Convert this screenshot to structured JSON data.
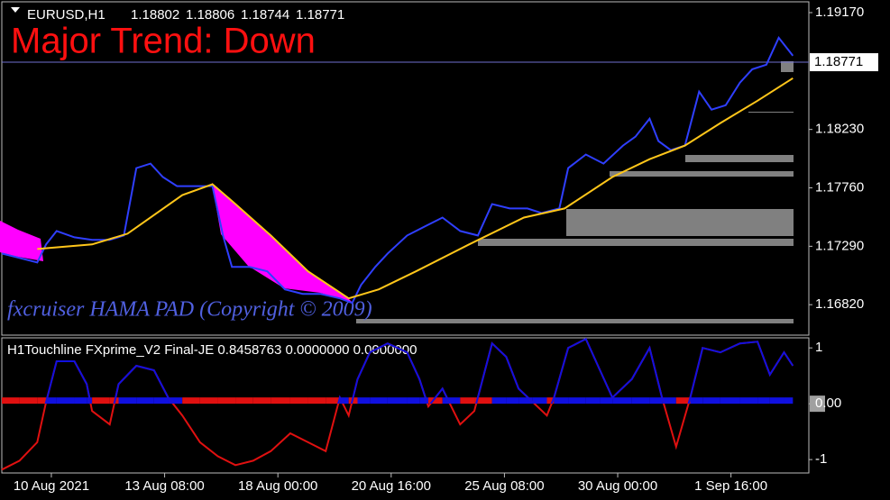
{
  "chart_data": [
    {
      "type": "line",
      "symbol": "EURUSD,H1",
      "ohlc": [
        1.18802,
        1.18806,
        1.18744,
        1.18771
      ],
      "annotation": "Major Trend: Down",
      "watermark": "fxcruiser HAMA PAD (Copyright © 2009)",
      "last_price": 1.18771,
      "x": [
        -28,
        -18,
        -8,
        -3,
        3,
        13,
        23,
        33,
        41,
        48,
        56,
        63,
        71,
        81,
        91,
        97,
        102,
        112,
        122,
        132,
        142,
        152,
        163,
        170,
        175,
        183,
        190,
        201,
        211,
        221,
        231,
        241,
        249,
        259,
        269,
        277,
        287,
        292,
        302,
        312,
        323,
        330,
        338,
        343,
        350,
        358,
        366,
        373,
        381,
        389,
        396,
        404,
        411,
        417,
        419
      ],
      "series": [
        {
          "color": "#2f3fff",
          "values": [
            1.17232,
            1.17196,
            1.1716,
            1.17305,
            1.17413,
            1.17362,
            1.17341,
            1.17341,
            1.17377,
            1.17919,
            1.17955,
            1.17847,
            1.17774,
            1.17774,
            1.17774,
            1.17377,
            1.17124,
            1.17124,
            1.17088,
            1.16943,
            1.16907,
            1.16907,
            1.16871,
            1.16834,
            1.16979,
            1.17124,
            1.17232,
            1.17377,
            1.17449,
            1.17521,
            1.17413,
            1.17377,
            1.1763,
            1.17594,
            1.17594,
            1.17557,
            1.17594,
            1.17919,
            1.18028,
            1.17955,
            1.181,
            1.18172,
            1.18317,
            1.18136,
            1.18064,
            1.181,
            1.18534,
            1.18389,
            1.18425,
            1.18606,
            1.18714,
            1.18751,
            1.18968,
            1.18859,
            1.18823
          ]
        },
        {
          "color": "#ffc61a",
          "x": [
            -8,
            23,
            43,
            74,
            91,
            104,
            124,
            145,
            168,
            185,
            206,
            236,
            267,
            290,
            317,
            338,
            358,
            378,
            399,
            419
          ],
          "values": [
            1.17268,
            1.17305,
            1.17391,
            1.17702,
            1.17789,
            1.1763,
            1.17377,
            1.17088,
            1.16871,
            1.16943,
            1.17088,
            1.17305,
            1.17521,
            1.17594,
            1.17847,
            1.17991,
            1.181,
            1.18281,
            1.18461,
            1.18642
          ]
        }
      ],
      "xlim": [
        -28,
        428
      ],
      "ylim": [
        1.19257,
        1.16575
      ],
      "yticks": [
        {
          "value": 1.1917,
          "label": "1.19170"
        },
        {
          "value": 1.1823,
          "label": "1.18230"
        },
        {
          "value": 1.1776,
          "label": "1.17760"
        },
        {
          "value": 1.1729,
          "label": "1.17290"
        },
        {
          "value": 1.1682,
          "label": "1.16820"
        }
      ]
    },
    {
      "type": "line",
      "title": "H1Touchline  FXprime_V2 Final-JE 0.8458763 0.0000000 0.0000000",
      "x": [
        -28,
        -18,
        -8,
        -3,
        3,
        13,
        20,
        23,
        33,
        38,
        48,
        58,
        66,
        74,
        84,
        94,
        104,
        114,
        124,
        135,
        145,
        155,
        163,
        168,
        173,
        180,
        190,
        201,
        208,
        213,
        221,
        231,
        239,
        249,
        257,
        264,
        272,
        280,
        284,
        292,
        302,
        310,
        317,
        328,
        338,
        345,
        353,
        361,
        368,
        378,
        389,
        399,
        406,
        414,
        419
      ],
      "series": [
        {
          "color": "#e01010",
          "positive_color": "#1010e0",
          "values": [
            -1.18,
            -1.02,
            -0.69,
            0.03,
            0.76,
            0.76,
            0.35,
            -0.13,
            -0.37,
            0.35,
            0.68,
            0.6,
            0.11,
            -0.21,
            -0.69,
            -0.94,
            -1.1,
            -1.02,
            -0.85,
            -0.53,
            -0.69,
            -0.85,
            0.11,
            -0.21,
            0.44,
            0.92,
            1.08,
            0.92,
            0.44,
            -0.05,
            0.27,
            -0.37,
            -0.13,
            1.08,
            0.84,
            0.27,
            0.03,
            -0.21,
            0.11,
            1.0,
            1.16,
            0.6,
            0.11,
            0.44,
            1.0,
            0.11,
            -0.77,
            0.11,
            1.0,
            0.92,
            1.08,
            1.11,
            0.52,
            0.92,
            0.68
          ]
        }
      ],
      "xlim": [
        -28,
        428
      ],
      "ylim": [
        1.18,
        -1.24
      ],
      "yticks": [
        1,
        {
          "value": 0,
          "label": "0.00"
        },
        -1
      ],
      "xticks": [
        {
          "value": 0,
          "label": "10 Aug 2021"
        },
        {
          "value": 64,
          "label": "13 Aug 08:00"
        },
        {
          "value": 128,
          "label": "18 Aug 00:00"
        },
        {
          "value": 192,
          "label": "20 Aug 16:00"
        },
        {
          "value": 256,
          "label": "25 Aug 08:00"
        },
        {
          "value": 320,
          "label": "30 Aug 00:00"
        },
        {
          "value": 384,
          "label": "1 Sep 16:00"
        }
      ]
    }
  ]
}
